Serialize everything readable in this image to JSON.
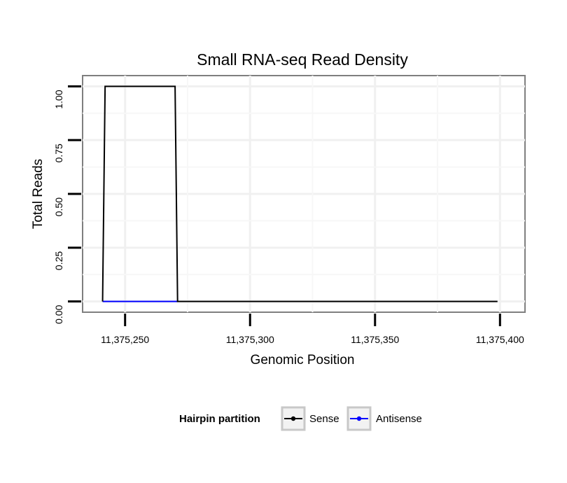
{
  "chart_data": {
    "type": "line",
    "title": "Small RNA-seq Read Density",
    "xlabel": "Genomic Position",
    "ylabel": "Total Reads",
    "xlim": [
      11375233,
      11375410
    ],
    "ylim": [
      -0.05,
      1.05
    ],
    "x_ticks": [
      11375250,
      11375300,
      11375350,
      11375400
    ],
    "x_tick_labels": [
      "11,375,250",
      "11,375,300",
      "11,375,350",
      "11,375,400"
    ],
    "y_ticks": [
      0,
      0.25,
      0.5,
      0.75,
      1.0
    ],
    "y_tick_labels": [
      "0.00",
      "0.25",
      "0.50",
      "0.75",
      "1.00"
    ],
    "grid": true,
    "legend": {
      "title": "Hairpin partition",
      "position": "bottom"
    },
    "series": [
      {
        "name": "Sense",
        "color": "#000000",
        "x": [
          11375241,
          11375242,
          11375270,
          11375271,
          11375399
        ],
        "y": [
          0,
          1,
          1,
          0,
          0
        ]
      },
      {
        "name": "Antisense",
        "color": "#0000ff",
        "x": [
          11375241,
          11375271
        ],
        "y": [
          0,
          0
        ]
      }
    ]
  }
}
